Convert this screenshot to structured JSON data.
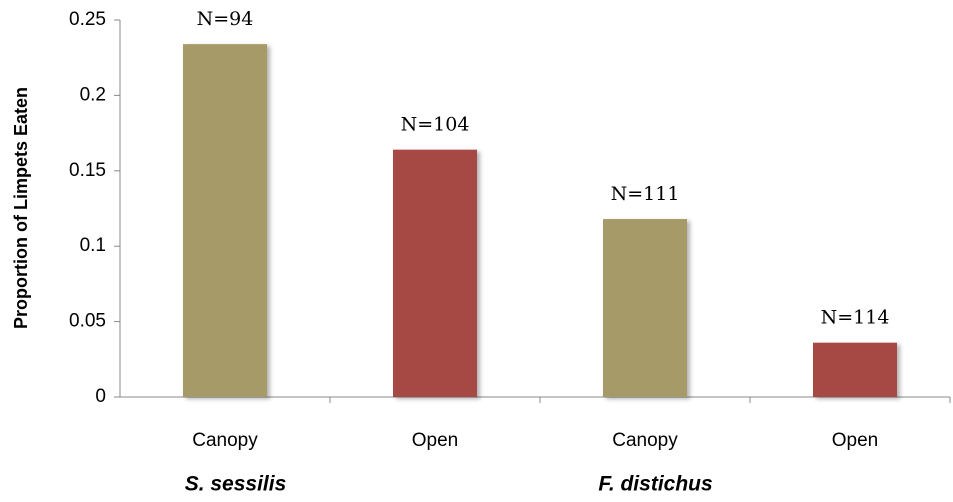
{
  "chart_data": {
    "type": "bar",
    "y_label": "Proportion of Limpets Eaten",
    "categories": [
      "Canopy",
      "Open",
      "Canopy",
      "Open"
    ],
    "values": [
      0.234,
      0.164,
      0.118,
      0.036
    ],
    "colors": [
      "#a59a68",
      "#a64a44",
      "#a59a68",
      "#a64a44"
    ],
    "annotations": [
      "N=94",
      "N=104",
      "N=111",
      "N=114"
    ],
    "groups": [
      "S. sessilis",
      "F. distichus"
    ],
    "ylim": [
      0,
      0.25
    ],
    "yticks": [
      0,
      0.05,
      0.1,
      0.15,
      0.2,
      0.25
    ],
    "grid": false
  }
}
